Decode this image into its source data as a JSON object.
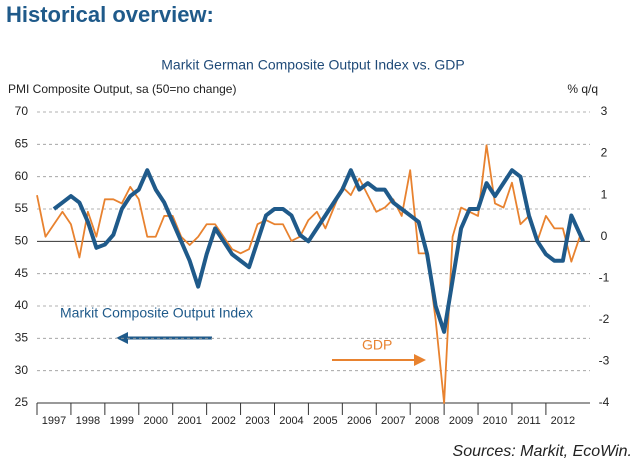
{
  "chart_data": {
    "type": "line",
    "heading": "Historical overview:",
    "title": "Markit German Composite Output Index vs. GDP",
    "ylabel": "PMI Composite Output, sa (50=no change)",
    "y2label": "% q/q",
    "source": "Sources: Markit, EcoWin.",
    "xlim": [
      1997,
      2013.3
    ],
    "xticks": [
      1997,
      1998,
      1999,
      2000,
      2001,
      2002,
      2003,
      2004,
      2005,
      2006,
      2007,
      2008,
      2009,
      2010,
      2011,
      2012
    ],
    "ylim": [
      25,
      70
    ],
    "yticks": [
      25,
      30,
      35,
      40,
      45,
      50,
      55,
      60,
      65,
      70
    ],
    "y2lim": [
      -4,
      3
    ],
    "y2ticks": [
      -4,
      -3,
      -2,
      -1,
      0,
      1,
      2,
      3
    ],
    "grid": true,
    "series": [
      {
        "name": "Markit Composite Output Index",
        "color": "#1f5a8a",
        "axis": "y",
        "x": [
          1997.5,
          1997.75,
          1998,
          1998.25,
          1998.5,
          1998.75,
          1999,
          1999.25,
          1999.5,
          1999.75,
          2000,
          2000.25,
          2000.5,
          2000.75,
          2001,
          2001.25,
          2001.5,
          2001.75,
          2002,
          2002.25,
          2002.5,
          2002.75,
          2003,
          2003.25,
          2003.5,
          2003.75,
          2004,
          2004.25,
          2004.5,
          2004.75,
          2005,
          2005.25,
          2005.5,
          2005.75,
          2006,
          2006.25,
          2006.5,
          2006.75,
          2007,
          2007.25,
          2007.5,
          2007.75,
          2008,
          2008.25,
          2008.5,
          2008.75,
          2009,
          2009.25,
          2009.5,
          2009.75,
          2010,
          2010.25,
          2010.5,
          2010.75,
          2011,
          2011.25,
          2011.5,
          2011.75,
          2012,
          2012.25,
          2012.5,
          2012.75,
          2013.1
        ],
        "values": [
          55,
          56,
          57,
          56,
          53,
          49,
          49.5,
          51,
          55,
          57,
          58,
          61,
          58,
          56,
          53,
          50,
          47,
          43,
          48,
          52,
          50,
          48,
          47,
          46,
          50,
          54,
          55,
          55,
          54,
          51,
          50,
          52,
          54,
          56,
          58,
          61,
          58,
          59,
          58,
          58,
          56,
          55,
          54,
          53,
          48,
          40,
          36,
          44,
          52,
          55,
          55,
          59,
          57,
          59,
          61,
          60,
          54,
          50,
          48,
          47,
          47,
          54,
          50
        ]
      },
      {
        "name": "GDP",
        "color": "#e8822f",
        "axis": "y2",
        "x": [
          1997,
          1997.25,
          1997.5,
          1997.75,
          1998,
          1998.25,
          1998.5,
          1998.75,
          1999,
          1999.25,
          1999.5,
          1999.75,
          2000,
          2000.25,
          2000.5,
          2000.75,
          2001,
          2001.25,
          2001.5,
          2001.75,
          2002,
          2002.25,
          2002.5,
          2002.75,
          2003,
          2003.25,
          2003.5,
          2003.75,
          2004,
          2004.25,
          2004.5,
          2004.75,
          2005,
          2005.25,
          2005.5,
          2005.75,
          2006,
          2006.25,
          2006.5,
          2006.75,
          2007,
          2007.25,
          2007.5,
          2007.75,
          2008,
          2008.25,
          2008.5,
          2008.75,
          2009,
          2009.25,
          2009.5,
          2009.75,
          2010,
          2010.25,
          2010.5,
          2010.75,
          2011,
          2011.25,
          2011.5,
          2011.75,
          2012,
          2012.25,
          2012.5,
          2012.75,
          2013
        ],
        "values": [
          1.0,
          0.0,
          0.3,
          0.6,
          0.3,
          -0.5,
          0.6,
          0.0,
          0.9,
          0.9,
          0.8,
          1.2,
          0.9,
          0.0,
          0.0,
          0.5,
          0.5,
          0.0,
          -0.2,
          0.0,
          0.3,
          0.3,
          0.0,
          -0.3,
          -0.4,
          -0.3,
          0.3,
          0.4,
          0.3,
          0.3,
          -0.1,
          0.0,
          0.4,
          0.6,
          0.2,
          0.7,
          1.2,
          1.0,
          1.4,
          1.0,
          0.6,
          0.7,
          0.9,
          0.5,
          1.6,
          -0.4,
          -0.4,
          -2.0,
          -4.0,
          0.0,
          0.7,
          0.6,
          0.5,
          2.2,
          0.8,
          0.7,
          1.3,
          0.3,
          0.5,
          -0.1,
          0.5,
          0.2,
          0.2,
          -0.6,
          0.0
        ]
      }
    ]
  }
}
